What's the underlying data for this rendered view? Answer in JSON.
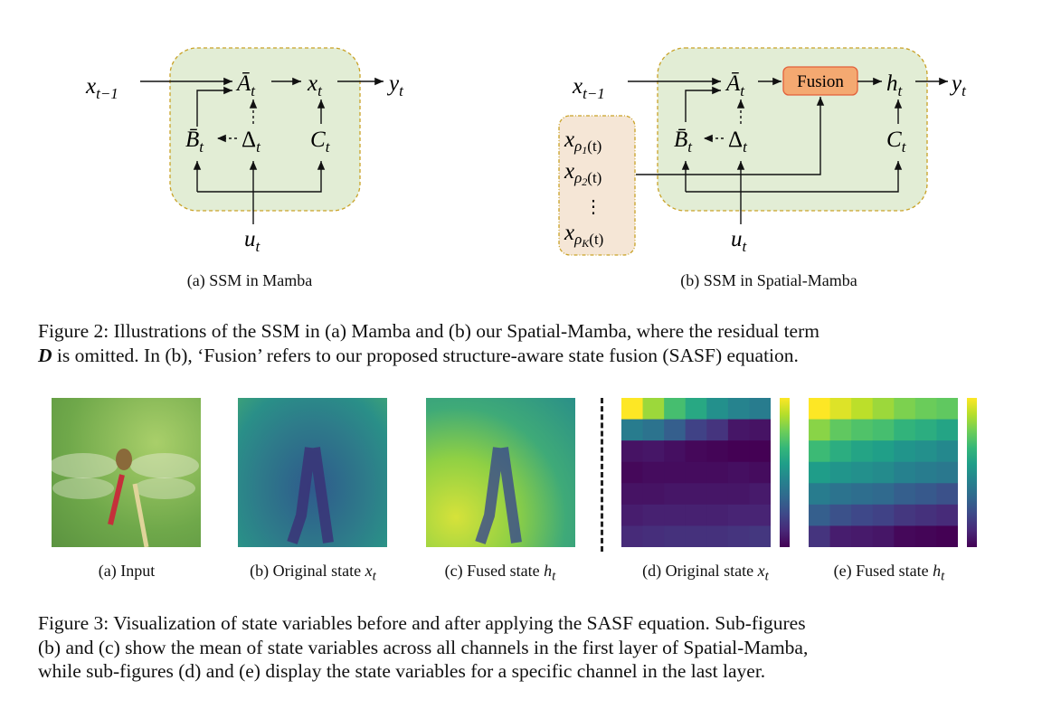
{
  "figure2": {
    "panel_a": {
      "nodes": {
        "x_prev": "x",
        "x_prev_sub": "t−1",
        "A": "Ā",
        "A_sub": "t",
        "x": "x",
        "x_sub": "t",
        "y": "y",
        "y_sub": "t",
        "B": "B̄",
        "B_sub": "t",
        "Delta": "Δ",
        "Delta_sub": "t",
        "C": "C",
        "C_sub": "t",
        "u": "u",
        "u_sub": "t"
      },
      "caption": "(a) SSM in Mamba"
    },
    "panel_b": {
      "nodes": {
        "x_prev": "x",
        "x_prev_sub": "t−1",
        "A": "Ā",
        "A_sub": "t",
        "fusion": "Fusion",
        "h": "h",
        "h_sub": "t",
        "y": "y",
        "y_sub": "t",
        "B": "B̄",
        "B_sub": "t",
        "Delta": "Δ",
        "Delta_sub": "t",
        "C": "C",
        "C_sub": "t",
        "u": "u",
        "u_sub": "t"
      },
      "neighbors": [
        {
          "x": "x",
          "rho": "ρ",
          "k": "1",
          "t": "(t)"
        },
        {
          "x": "x",
          "rho": "ρ",
          "k": "2",
          "t": "(t)"
        },
        {
          "x": "x",
          "rho": "ρ",
          "k": "K",
          "t": "(t)"
        }
      ],
      "ellipsis": "⋮",
      "caption": "(b) SSM in Spatial-Mamba"
    },
    "colors": {
      "state_box": "#e2edd5",
      "state_border": "#c9a227",
      "neighbor_box": "#f5e6d6",
      "fusion_fill": "#f4a971",
      "fusion_border": "#e2603a"
    },
    "caption_line1": "Figure 2: Illustrations of the SSM in (a) Mamba and (b) our Spatial-Mamba, where the residual term",
    "caption_line2_bold": "D",
    "caption_line2": " is omitted. In (b), ‘Fusion’ refers to our proposed structure-aware state fusion (SASF) equation."
  },
  "figure3": {
    "subcaptions": [
      {
        "label": "(a) Input",
        "var": "",
        "var_sub": ""
      },
      {
        "label": "(b) Original state ",
        "var": "x",
        "var_sub": "t"
      },
      {
        "label": "(c) Fused state ",
        "var": "h",
        "var_sub": "t"
      },
      {
        "label": "(d) Original state ",
        "var": "x",
        "var_sub": "t"
      },
      {
        "label": "(e) Fused state ",
        "var": "h",
        "var_sub": "t"
      }
    ],
    "colormap": "viridis",
    "chart_data": [
      {
        "type": "heatmap",
        "title": "(d) Original state x_t",
        "colorbar": true,
        "values": [
          [
            1.0,
            0.85,
            0.7,
            0.6,
            0.5,
            0.45,
            0.42
          ],
          [
            0.42,
            0.38,
            0.3,
            0.2,
            0.15,
            0.06,
            0.05
          ],
          [
            0.05,
            0.06,
            0.04,
            0.02,
            0.01,
            0.0,
            0.0
          ],
          [
            0.02,
            0.03,
            0.03,
            0.03,
            0.03,
            0.04,
            0.03
          ],
          [
            0.05,
            0.05,
            0.06,
            0.06,
            0.06,
            0.06,
            0.07
          ],
          [
            0.08,
            0.09,
            0.09,
            0.09,
            0.09,
            0.1,
            0.1
          ],
          [
            0.12,
            0.13,
            0.14,
            0.14,
            0.14,
            0.15,
            0.16
          ]
        ]
      },
      {
        "type": "heatmap",
        "title": "(e) Fused state h_t",
        "colorbar": true,
        "values": [
          [
            1.0,
            0.95,
            0.9,
            0.85,
            0.8,
            0.77,
            0.75
          ],
          [
            0.82,
            0.75,
            0.72,
            0.7,
            0.65,
            0.62,
            0.58
          ],
          [
            0.68,
            0.62,
            0.58,
            0.56,
            0.52,
            0.5,
            0.47
          ],
          [
            0.55,
            0.52,
            0.5,
            0.48,
            0.44,
            0.42,
            0.4
          ],
          [
            0.42,
            0.38,
            0.36,
            0.34,
            0.3,
            0.28,
            0.25
          ],
          [
            0.3,
            0.25,
            0.22,
            0.2,
            0.16,
            0.14,
            0.12
          ],
          [
            0.15,
            0.08,
            0.07,
            0.06,
            0.02,
            0.01,
            0.0
          ]
        ]
      }
    ],
    "caption_lines": [
      "Figure 3: Visualization of state variables before and after applying the SASF equation. Sub-figures",
      "(b) and (c) show the mean of state variables across all channels in the first layer of Spatial-Mamba,",
      "while sub-figures (d) and (e) display the state variables for a specific channel in the last layer."
    ]
  }
}
